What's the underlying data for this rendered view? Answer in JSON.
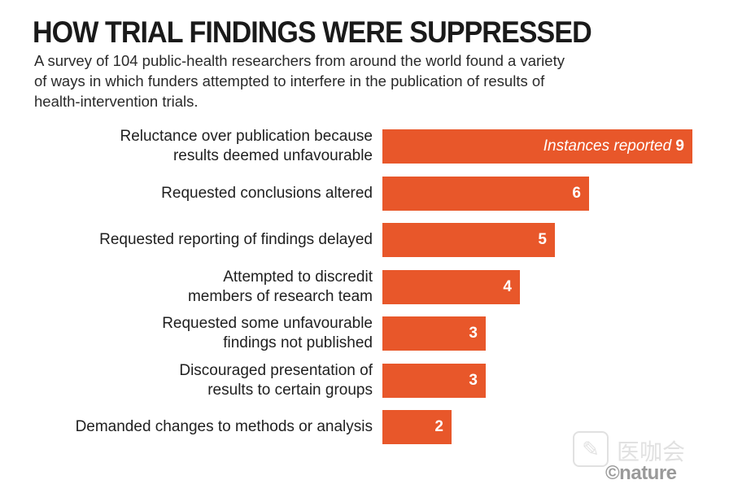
{
  "title": "HOW TRIAL FINDINGS WERE SUPPRESSED",
  "subtitle": "A survey of 104 public-health researchers from around the world found a variety of ways in which funders attempted to interfere in the publication of results of health-intervention trials.",
  "colors": {
    "bar": "#e8572a",
    "bar_text": "#ffffff"
  },
  "chart_data": {
    "type": "bar",
    "orientation": "horizontal",
    "title": "HOW TRIAL FINDINGS WERE SUPPRESSED",
    "categories": [
      "Reluctance over publication because results deemed unfavourable",
      "Requested conclusions altered",
      "Requested reporting of findings delayed",
      "Attempted to discredit members of research team",
      "Requested some unfavourable findings not published",
      "Discouraged presentation of results to certain groups",
      "Demanded changes to methods or analysis"
    ],
    "label_lines": [
      [
        "Reluctance over publication because",
        "results deemed unfavourable"
      ],
      [
        "Requested conclusions altered"
      ],
      [
        "Requested reporting of findings delayed"
      ],
      [
        "Attempted to discredit",
        "members of research team"
      ],
      [
        "Requested some unfavourable",
        "findings not published"
      ],
      [
        "Discouraged presentation of",
        "results to certain groups"
      ],
      [
        "Demanded changes to methods or analysis"
      ]
    ],
    "values": [
      9,
      6,
      5,
      4,
      3,
      3,
      2
    ],
    "value_note": "Instances reported",
    "xlim": [
      0,
      9
    ]
  },
  "logo": {
    "nature": "©nature",
    "watermark_cn": "医咖会"
  }
}
